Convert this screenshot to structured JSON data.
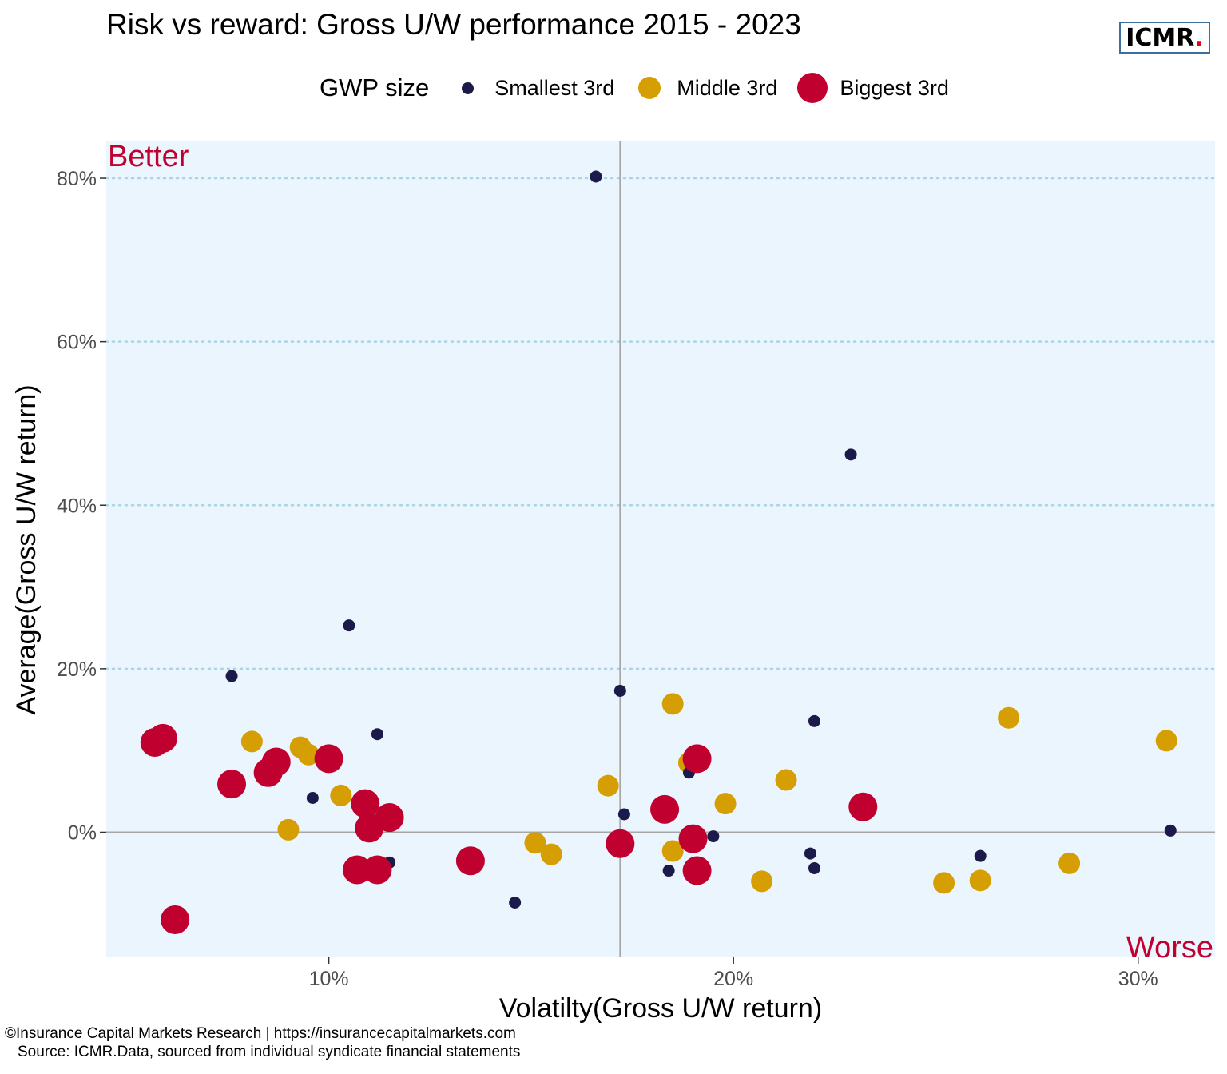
{
  "title": "Risk vs reward: Gross U/W performance 2015 - 2023",
  "logo": {
    "text": "ICMR",
    "dot": ".",
    "dot_color": "#e10016"
  },
  "legend": {
    "title": "GWP size",
    "items": [
      {
        "label": "Smallest 3rd",
        "color": "#1c1a4a"
      },
      {
        "label": "Middle 3rd",
        "color": "#d59e02"
      },
      {
        "label": "Biggest 3rd",
        "color": "#c0002f"
      }
    ]
  },
  "footer": {
    "line1": "©Insurance Capital Markets Research | https://insurancecapitalmarkets.com",
    "line2": "Source: ICMR.Data, sourced from individual syndicate financial statements"
  },
  "chart_data": {
    "type": "scatter",
    "title": "Risk vs reward: Gross U/W performance 2015 - 2023",
    "xlabel": "Volatilty(Gross U/W return)",
    "ylabel": "Average(Gross U/W return)",
    "xlim": [
      4.5,
      31.9
    ],
    "ylim": [
      -15.3,
      84.5
    ],
    "x_ticks": [
      10,
      20,
      30
    ],
    "x_tick_labels": [
      "10%",
      "20%",
      "30%"
    ],
    "y_ticks": [
      0,
      20,
      40,
      60,
      80
    ],
    "y_tick_labels": [
      "0%",
      "20%",
      "40%",
      "60%",
      "80%"
    ],
    "grid": "horizontal dotted",
    "reference_lines": {
      "x": 17.2,
      "y": 0
    },
    "annotations": {
      "top_left": "Better",
      "bottom_right": "Worse"
    },
    "legend_position": "top",
    "background_color": "#eaf5fd",
    "series": [
      {
        "name": "Smallest 3rd",
        "color": "#1c1a4a",
        "points": [
          [
            16.6,
            80.2
          ],
          [
            22.9,
            46.2
          ],
          [
            10.5,
            25.3
          ],
          [
            7.6,
            19.1
          ],
          [
            17.2,
            17.3
          ],
          [
            11.2,
            12.0
          ],
          [
            22.0,
            13.6
          ],
          [
            18.9,
            7.3
          ],
          [
            9.6,
            4.2
          ],
          [
            17.3,
            2.2
          ],
          [
            19.5,
            -0.5
          ],
          [
            21.9,
            -2.6
          ],
          [
            22.0,
            -4.4
          ],
          [
            18.4,
            -4.7
          ],
          [
            11.5,
            -3.7
          ],
          [
            14.6,
            -8.6
          ],
          [
            26.1,
            -2.9
          ],
          [
            30.8,
            0.2
          ]
        ]
      },
      {
        "name": "Middle 3rd",
        "color": "#d59e02",
        "points": [
          [
            8.1,
            11.1
          ],
          [
            9.3,
            10.4
          ],
          [
            9.5,
            9.5
          ],
          [
            10.3,
            4.5
          ],
          [
            9.0,
            0.3
          ],
          [
            15.1,
            -1.3
          ],
          [
            15.5,
            -2.7
          ],
          [
            16.9,
            5.7
          ],
          [
            18.5,
            15.7
          ],
          [
            18.9,
            8.5
          ],
          [
            19.8,
            3.5
          ],
          [
            21.3,
            6.4
          ],
          [
            18.5,
            -2.3
          ],
          [
            20.7,
            -6.0
          ],
          [
            25.2,
            -6.2
          ],
          [
            26.1,
            -5.9
          ],
          [
            26.8,
            14.0
          ],
          [
            28.3,
            -3.8
          ],
          [
            30.7,
            11.2
          ]
        ]
      },
      {
        "name": "Biggest 3rd",
        "color": "#c0002f",
        "points": [
          [
            5.7,
            11.0
          ],
          [
            5.9,
            11.5
          ],
          [
            7.6,
            5.9
          ],
          [
            8.5,
            7.3
          ],
          [
            8.7,
            8.6
          ],
          [
            10.0,
            9.0
          ],
          [
            10.9,
            3.5
          ],
          [
            11.0,
            0.5
          ],
          [
            11.5,
            1.8
          ],
          [
            10.7,
            -4.6
          ],
          [
            11.2,
            -4.6
          ],
          [
            6.2,
            -10.7
          ],
          [
            13.5,
            -3.5
          ],
          [
            17.2,
            -1.4
          ],
          [
            18.3,
            2.8
          ],
          [
            19.0,
            -0.8
          ],
          [
            19.1,
            9.0
          ],
          [
            19.1,
            -4.7
          ],
          [
            23.2,
            3.1
          ]
        ]
      }
    ]
  }
}
